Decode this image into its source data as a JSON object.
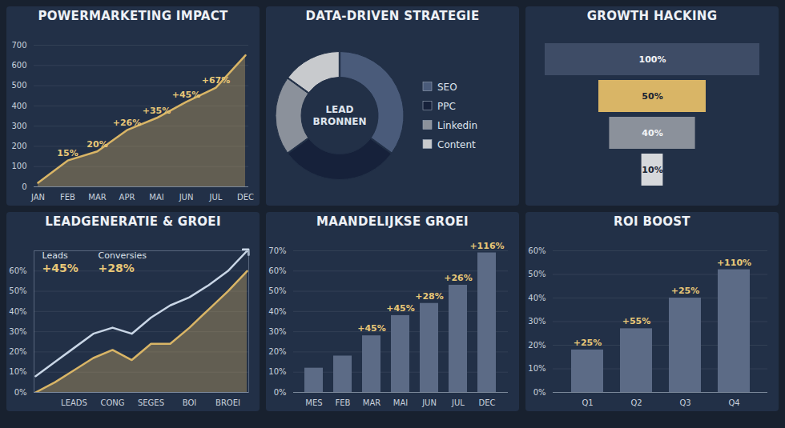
{
  "chart_data": [
    {
      "type": "area",
      "title": "POWERMARKETING IMPACT",
      "categories": [
        "JAN",
        "FEB",
        "MAR",
        "APR",
        "MAI",
        "JUN",
        "JUL",
        "DEC"
      ],
      "values": [
        20,
        130,
        175,
        280,
        340,
        420,
        490,
        650
      ],
      "annotations": [
        null,
        "15%",
        "20%",
        "+26%",
        "+35%",
        "+45%",
        "+67%",
        null
      ],
      "color": "#d9b566",
      "ylim": [
        0,
        700
      ],
      "yticks": [
        0,
        100,
        200,
        300,
        400,
        500,
        600,
        700
      ],
      "grid": true
    },
    {
      "type": "donut",
      "title": "DATA-DRIVEN STRATEGIE",
      "center_label": "LEAD BRONNEN",
      "categories": [
        "SEO",
        "PPC",
        "Linkedin",
        "Content"
      ],
      "values": [
        35,
        30,
        20,
        15
      ],
      "colors": [
        "#4a5b7a",
        "#16213a",
        "#8b919b",
        "#c8cacd"
      ],
      "legend": "right"
    },
    {
      "type": "funnel",
      "title": "GROWTH HACKING",
      "values": [
        100,
        50,
        40,
        10
      ],
      "value_labels": [
        "100%",
        "50%",
        "40%",
        "10%"
      ],
      "colors": [
        "#3e4c66",
        "#d9b566",
        "#8b919b",
        "#d6d8db"
      ],
      "data_labels": true,
      "tick_labels": false
    },
    {
      "type": "line",
      "title": "LEADGENERATIE & GROEI",
      "categories": [
        null,
        null,
        "LEADS",
        null,
        "CONG",
        null,
        "SEGES",
        null,
        "BOI",
        null,
        "BROEI",
        null
      ],
      "series": [
        {
          "name": "Leads",
          "type": "line",
          "marker": "arrow",
          "color": "#c9d6e6",
          "change": "+45%",
          "values": [
            8,
            15,
            22,
            29,
            32,
            29,
            37,
            43,
            47,
            53,
            60,
            70
          ]
        },
        {
          "name": "Conversies",
          "type": "area",
          "color": "#d9b566",
          "change": "+28%",
          "values": [
            0,
            5,
            11,
            17,
            21,
            16,
            24,
            24,
            32,
            41,
            50,
            60
          ]
        }
      ],
      "ylim": [
        0,
        70
      ],
      "yticks": [
        {
          "value": 0,
          "label": "0%"
        },
        {
          "value": 10,
          "label": "10%"
        },
        {
          "value": 20,
          "label": "20%"
        },
        {
          "value": 30,
          "label": "30%"
        },
        {
          "value": 40,
          "label": "40%"
        },
        {
          "value": 50,
          "label": "50%"
        },
        {
          "value": 60,
          "label": "60%"
        }
      ],
      "grid": true,
      "legend": "top-left"
    },
    {
      "type": "bar",
      "title": "MAANDELIJKSE GROEI",
      "categories": [
        "MES",
        "FEB",
        "MAR",
        "MAI",
        "JUN",
        "JUL",
        "DEC"
      ],
      "values": [
        12,
        18,
        28,
        38,
        44,
        53,
        69
      ],
      "annotations": [
        null,
        null,
        "+45%",
        "+45%",
        "+28%",
        "+26%",
        "+116%"
      ],
      "color": "#5c6b86",
      "ylim": [
        0,
        70
      ],
      "yticks": [
        {
          "value": 0,
          "label": "0%"
        },
        {
          "value": 10,
          "label": "10%"
        },
        {
          "value": 20,
          "label": "20%"
        },
        {
          "value": 30,
          "label": "30%"
        },
        {
          "value": 40,
          "label": "40%"
        },
        {
          "value": 50,
          "label": "50%"
        },
        {
          "value": 60,
          "label": "60%"
        },
        {
          "value": 70,
          "label": "70%"
        }
      ],
      "grid": true
    },
    {
      "type": "bar",
      "title": "ROI BOOST",
      "categories": [
        "Q1",
        "Q2",
        "Q3",
        "Q4"
      ],
      "values": [
        18,
        27,
        40,
        52
      ],
      "annotations": [
        "+25%",
        "+55%",
        "+25%",
        "+110%"
      ],
      "color": "#5c6b86",
      "ylim": [
        0,
        60
      ],
      "yticks": [
        {
          "value": 0,
          "label": "0%"
        },
        {
          "value": 10,
          "label": "10%"
        },
        {
          "value": 20,
          "label": "20%"
        },
        {
          "value": 30,
          "label": "30%"
        },
        {
          "value": 40,
          "label": "40%"
        },
        {
          "value": 50,
          "label": "50%"
        },
        {
          "value": 60,
          "label": "60%"
        }
      ],
      "grid": true
    }
  ]
}
